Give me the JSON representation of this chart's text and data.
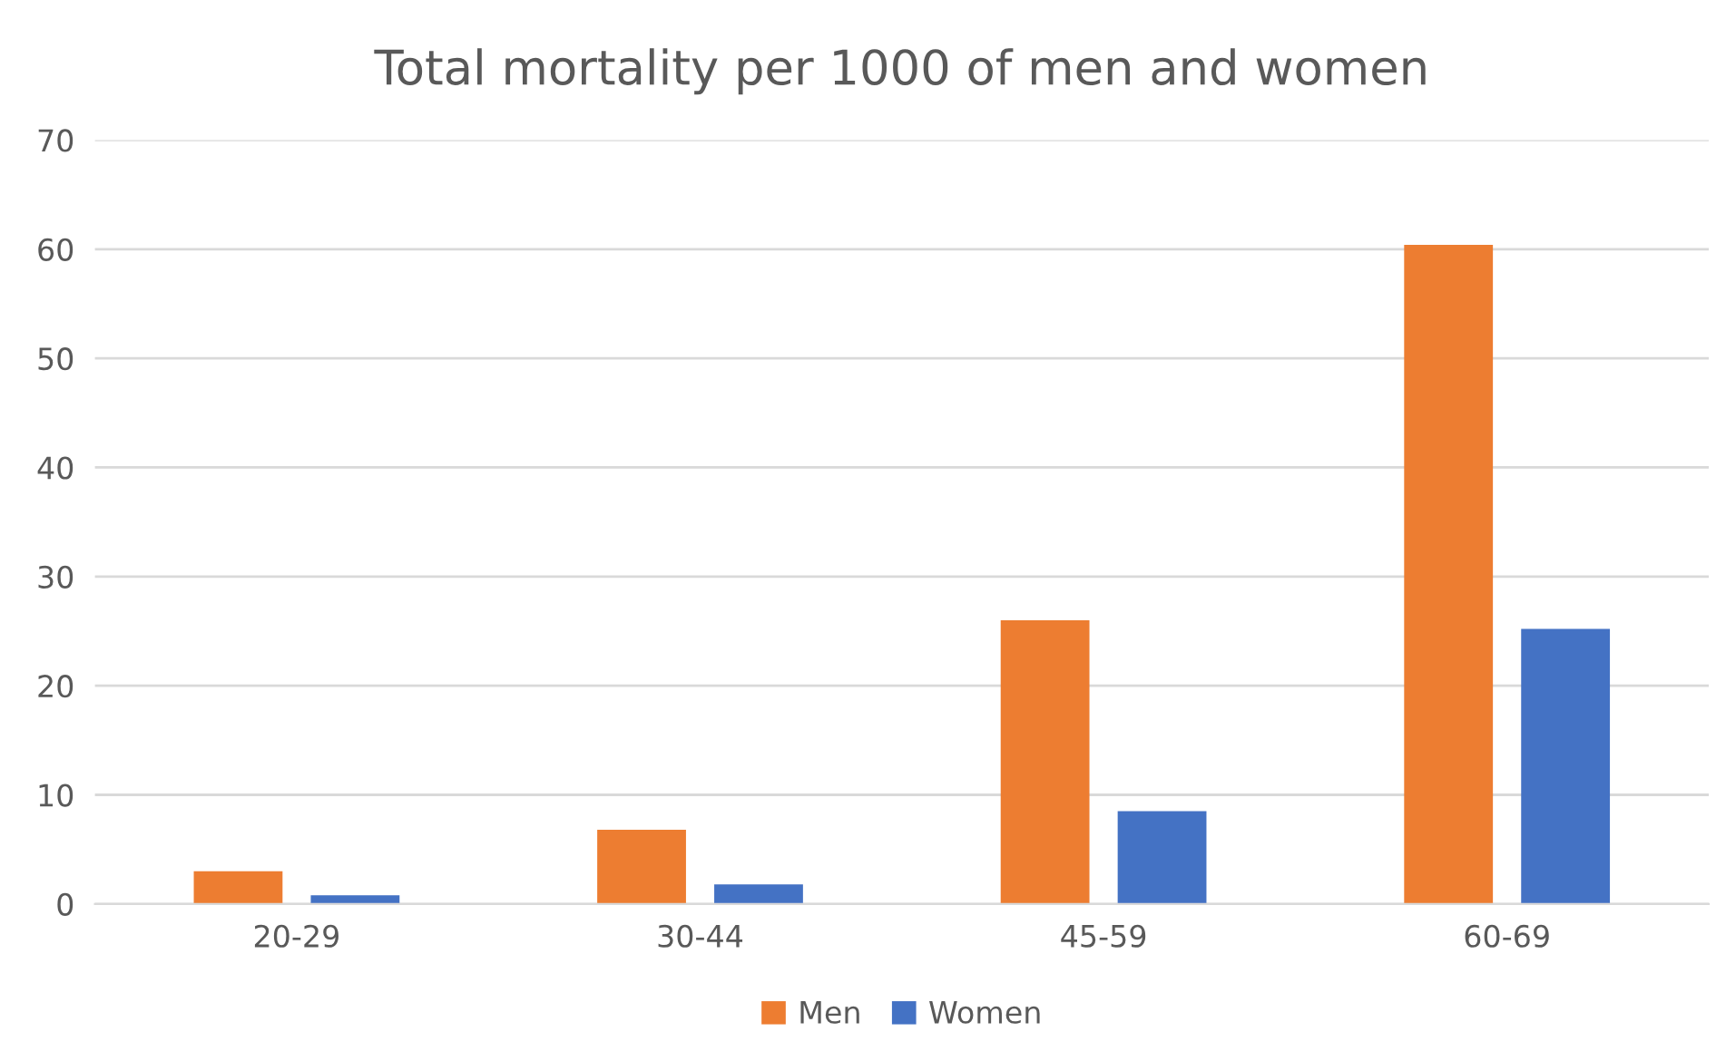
{
  "chart_data": {
    "type": "bar",
    "title": "Total mortality per 1000 of men and women",
    "categories": [
      "20-29",
      "30-44",
      "45-59",
      "60-69"
    ],
    "series": [
      {
        "name": "Men",
        "color": "#ed7d31",
        "values": [
          3.0,
          6.8,
          26.0,
          60.4
        ]
      },
      {
        "name": "Women",
        "color": "#4472c4",
        "values": [
          0.8,
          1.8,
          8.5,
          25.2
        ]
      }
    ],
    "ylim": [
      0,
      70
    ],
    "yticks": [
      0,
      10,
      20,
      30,
      40,
      50,
      60,
      70
    ],
    "grid": "y",
    "legend": "bottom"
  }
}
